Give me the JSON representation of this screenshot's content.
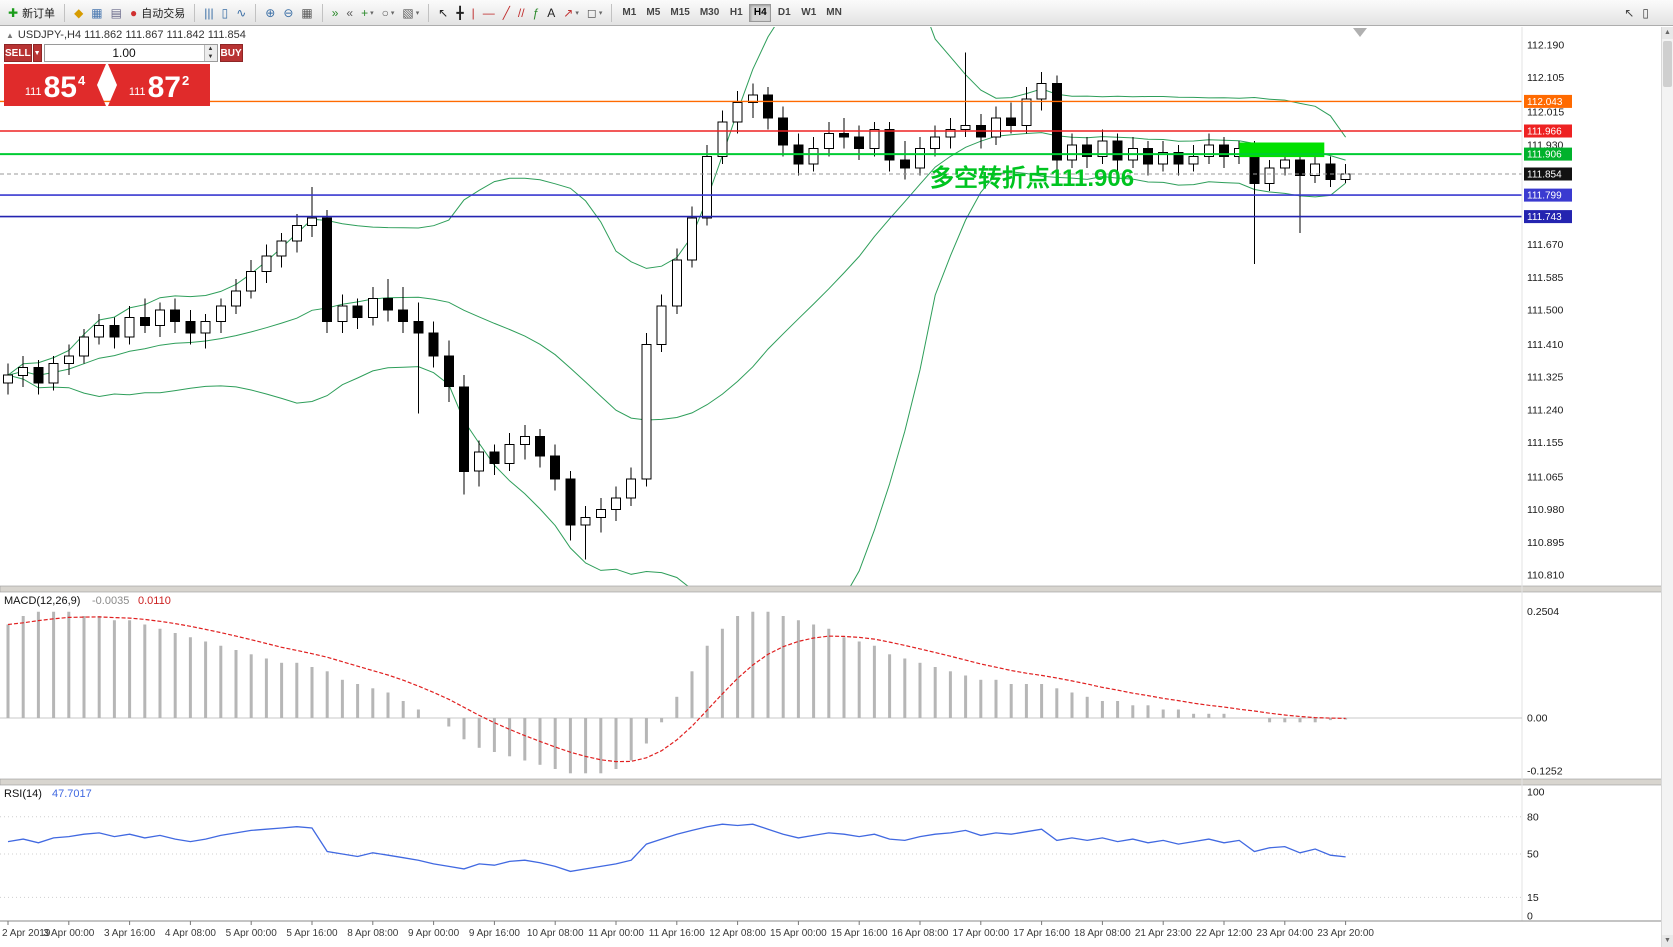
{
  "toolbar": {
    "groups": [
      {
        "items": [
          {
            "name": "new-order-button",
            "glyph": "✚",
            "glyph_color": "#1a9c1a",
            "label": "新订单"
          }
        ]
      },
      {
        "items": [
          {
            "name": "market-watch-icon",
            "glyph": "◆",
            "glyph_color": "#d69b00"
          },
          {
            "name": "data-window-icon",
            "glyph": "▦",
            "glyph_color": "#4a78b0"
          },
          {
            "name": "navigator-icon",
            "glyph": "▤",
            "glyph_color": "#6a6a8a"
          },
          {
            "name": "auto-trading-button",
            "glyph": "●",
            "glyph_color": "#d03030",
            "label": "自动交易"
          }
        ]
      },
      {
        "items": [
          {
            "name": "bar-chart-icon",
            "glyph": "|||",
            "glyph_color": "#3a6ea5"
          },
          {
            "name": "candlestick-chart-icon",
            "glyph": "▯",
            "glyph_color": "#3a6ea5"
          },
          {
            "name": "line-chart-icon",
            "glyph": "∿",
            "glyph_color": "#3a6ea5"
          }
        ]
      },
      {
        "items": [
          {
            "name": "zoom-in-icon",
            "glyph": "⊕",
            "glyph_color": "#3a6ea5"
          },
          {
            "name": "zoom-out-icon",
            "glyph": "⊖",
            "glyph_color": "#3a6ea5"
          },
          {
            "name": "tile-windows-icon",
            "glyph": "▦",
            "glyph_color": "#5a5a5a"
          }
        ]
      },
      {
        "items": [
          {
            "name": "auto-scroll-icon",
            "glyph": "»",
            "glyph_color": "#2c8a2c"
          },
          {
            "name": "chart-shift-icon",
            "glyph": "«",
            "glyph_color": "#5a5a5a"
          },
          {
            "name": "new-chart-button",
            "glyph": "+",
            "glyph_color": "#2c8a2c",
            "caret": true
          },
          {
            "name": "profiles-button",
            "glyph": "○",
            "glyph_color": "#5a5a5a",
            "caret": true
          },
          {
            "name": "templates-button",
            "glyph": "▧",
            "glyph_color": "#5a5a5a",
            "caret": true
          }
        ]
      },
      {
        "items": [
          {
            "name": "cursor-tool",
            "glyph": "↖",
            "glyph_color": "#222222"
          },
          {
            "name": "crosshair-tool",
            "glyph": "╋",
            "glyph_color": "#222222"
          },
          {
            "name": "vertical-line-tool",
            "glyph": "|",
            "glyph_color": "#c03030"
          },
          {
            "name": "horizontal-line-tool",
            "glyph": "—",
            "glyph_color": "#c03030"
          },
          {
            "name": "trendline-tool",
            "glyph": "╱",
            "glyph_color": "#c03030"
          },
          {
            "name": "channel-tool",
            "glyph": "//",
            "glyph_color": "#c03030"
          },
          {
            "name": "fibonacci-tool",
            "glyph": "ƒ",
            "glyph_color": "#2c8a2c"
          },
          {
            "name": "text-tool",
            "glyph": "A",
            "glyph_color": "#222222"
          },
          {
            "name": "arrow-tool",
            "glyph": "↗",
            "glyph_color": "#c03030",
            "caret": true
          },
          {
            "name": "shapes-tool",
            "glyph": "◻",
            "glyph_color": "#5a5a5a",
            "caret": true
          }
        ]
      }
    ],
    "timeframes": {
      "items": [
        "M1",
        "M5",
        "M15",
        "M30",
        "H1",
        "H4",
        "D1",
        "W1",
        "MN"
      ],
      "active": "H4"
    },
    "right_items": [
      {
        "name": "pointer-icon",
        "glyph": "↖",
        "glyph_color": "#444444"
      },
      {
        "name": "window-icon",
        "glyph": "▯",
        "glyph_color": "#444444"
      }
    ]
  },
  "chart_header": {
    "marker": "▲",
    "symbol": "USDJPY-,H4",
    "ohlc": "111.862 111.867 111.842 111.854"
  },
  "trade_panel": {
    "sell_label": "SELL",
    "buy_label": "BUY",
    "volume": "1.00",
    "sell_price": {
      "prefix": "111",
      "big": "85",
      "sup": "4"
    },
    "buy_price": {
      "prefix": "111",
      "big": "87",
      "sup": "2"
    }
  },
  "annotation": {
    "text": "多空转折点111.906",
    "color": "#00c420"
  },
  "price_lines": [
    {
      "label": "112.043",
      "price": 112.043,
      "color": "#ff6a00",
      "badge": "#ff6a00",
      "text_color": "#ffffff",
      "width": 1.4
    },
    {
      "label": "111.966",
      "price": 111.966,
      "color": "#ee2222",
      "badge": "#ee2222",
      "text_color": "#ffffff",
      "width": 1.4
    },
    {
      "label": "111.906",
      "price": 111.906,
      "color": "#00cc33",
      "badge": "#00b22c",
      "text_color": "#ffffff",
      "width": 2
    },
    {
      "label": "111.854",
      "price": 111.854,
      "color": "#9a9a9a",
      "badge": "#111111",
      "text_color": "#ffffff",
      "width": 1,
      "dash": "4 3"
    },
    {
      "label": "111.799",
      "price": 111.799,
      "color": "#3a3ad0",
      "badge": "#3a3ad0",
      "text_color": "#ffffff",
      "width": 1.6
    },
    {
      "label": "111.743",
      "price": 111.743,
      "color": "#2424b0",
      "badge": "#2424b0",
      "text_color": "#ffffff",
      "width": 1.6
    }
  ],
  "highlight_box": {
    "start_index": 81,
    "end_index": 86.6,
    "price_top": 111.936,
    "price_bottom": 111.898,
    "color": "#00e000"
  },
  "price_axis": {
    "labels": [
      "112.190",
      "112.105",
      "112.015",
      "111.930",
      "111.670",
      "111.585",
      "111.500",
      "111.410",
      "111.325",
      "111.240",
      "111.155",
      "111.065",
      "110.980",
      "110.895",
      "110.810"
    ]
  },
  "time_axis": {
    "labels": [
      "2 Apr 2019",
      "3 Apr 00:00",
      "3 Apr 16:00",
      "4 Apr 08:00",
      "5 Apr 00:00",
      "5 Apr 16:00",
      "8 Apr 08:00",
      "9 Apr 00:00",
      "9 Apr 16:00",
      "10 Apr 08:00",
      "11 Apr 00:00",
      "11 Apr 16:00",
      "12 Apr 08:00",
      "15 Apr 00:00",
      "15 Apr 16:00",
      "16 Apr 08:00",
      "17 Apr 00:00",
      "17 Apr 16:00",
      "18 Apr 08:00",
      "21 Apr 23:00",
      "22 Apr 12:00",
      "23 Apr 04:00",
      "23 Apr 20:00"
    ]
  },
  "macd_panel": {
    "name": "MACD(12,26,9)",
    "value_main": "-0.0035",
    "value_signal": "0.0110",
    "axis_labels": [
      "0.2504",
      "0.00",
      "-0.1252"
    ]
  },
  "rsi_panel": {
    "name": "RSI(14)",
    "value": "47.7017",
    "axis_labels": [
      "100",
      "80",
      "50",
      "15",
      "0"
    ],
    "levels": [
      80,
      50,
      15
    ]
  },
  "chart_data": {
    "type": "candlestick",
    "symbol": "USDJPY",
    "timeframe": "H4",
    "ylim_main": [
      110.79,
      112.24
    ],
    "candles": [
      [
        111.31,
        111.36,
        111.28,
        111.33
      ],
      [
        111.33,
        111.38,
        111.3,
        111.35
      ],
      [
        111.35,
        111.37,
        111.28,
        111.31
      ],
      [
        111.31,
        111.38,
        111.29,
        111.36
      ],
      [
        111.36,
        111.41,
        111.33,
        111.38
      ],
      [
        111.38,
        111.45,
        111.36,
        111.43
      ],
      [
        111.43,
        111.49,
        111.41,
        111.46
      ],
      [
        111.46,
        111.48,
        111.4,
        111.43
      ],
      [
        111.43,
        111.51,
        111.41,
        111.48
      ],
      [
        111.48,
        111.53,
        111.44,
        111.46
      ],
      [
        111.46,
        111.52,
        111.43,
        111.5
      ],
      [
        111.5,
        111.53,
        111.44,
        111.47
      ],
      [
        111.47,
        111.5,
        111.41,
        111.44
      ],
      [
        111.44,
        111.49,
        111.4,
        111.47
      ],
      [
        111.47,
        111.53,
        111.44,
        111.51
      ],
      [
        111.51,
        111.58,
        111.49,
        111.55
      ],
      [
        111.55,
        111.63,
        111.53,
        111.6
      ],
      [
        111.6,
        111.67,
        111.57,
        111.64
      ],
      [
        111.64,
        111.7,
        111.61,
        111.68
      ],
      [
        111.68,
        111.75,
        111.65,
        111.72
      ],
      [
        111.72,
        111.82,
        111.69,
        111.74
      ],
      [
        111.74,
        111.76,
        111.44,
        111.47
      ],
      [
        111.47,
        111.54,
        111.44,
        111.51
      ],
      [
        111.51,
        111.53,
        111.45,
        111.48
      ],
      [
        111.48,
        111.56,
        111.46,
        111.53
      ],
      [
        111.53,
        111.58,
        111.47,
        111.5
      ],
      [
        111.5,
        111.56,
        111.44,
        111.47
      ],
      [
        111.47,
        111.52,
        111.23,
        111.44
      ],
      [
        111.44,
        111.47,
        111.35,
        111.38
      ],
      [
        111.38,
        111.42,
        111.26,
        111.3
      ],
      [
        111.3,
        111.33,
        111.02,
        111.08
      ],
      [
        111.08,
        111.16,
        111.04,
        111.13
      ],
      [
        111.13,
        111.15,
        111.07,
        111.1
      ],
      [
        111.1,
        111.18,
        111.08,
        111.15
      ],
      [
        111.15,
        111.2,
        111.11,
        111.17
      ],
      [
        111.17,
        111.19,
        111.09,
        111.12
      ],
      [
        111.12,
        111.15,
        111.03,
        111.06
      ],
      [
        111.06,
        111.08,
        110.9,
        110.94
      ],
      [
        110.94,
        110.99,
        110.85,
        110.96
      ],
      [
        110.96,
        111.01,
        110.92,
        110.98
      ],
      [
        110.98,
        111.04,
        110.95,
        111.01
      ],
      [
        111.01,
        111.09,
        110.99,
        111.06
      ],
      [
        111.06,
        111.44,
        111.04,
        111.41
      ],
      [
        111.41,
        111.54,
        111.39,
        111.51
      ],
      [
        111.51,
        111.66,
        111.49,
        111.63
      ],
      [
        111.63,
        111.77,
        111.61,
        111.74
      ],
      [
        111.74,
        111.93,
        111.72,
        111.9
      ],
      [
        111.9,
        112.02,
        111.88,
        111.99
      ],
      [
        111.99,
        112.07,
        111.96,
        112.04
      ],
      [
        112.04,
        112.09,
        112.0,
        112.06
      ],
      [
        112.06,
        112.08,
        111.97,
        112.0
      ],
      [
        112.0,
        112.03,
        111.9,
        111.93
      ],
      [
        111.93,
        111.96,
        111.85,
        111.88
      ],
      [
        111.88,
        111.95,
        111.86,
        111.92
      ],
      [
        111.92,
        111.99,
        111.9,
        111.96
      ],
      [
        111.96,
        112.0,
        111.92,
        111.95
      ],
      [
        111.95,
        111.98,
        111.89,
        111.92
      ],
      [
        111.92,
        111.99,
        111.9,
        111.97
      ],
      [
        111.97,
        111.99,
        111.86,
        111.89
      ],
      [
        111.89,
        111.94,
        111.84,
        111.87
      ],
      [
        111.87,
        111.95,
        111.85,
        111.92
      ],
      [
        111.92,
        111.98,
        111.9,
        111.95
      ],
      [
        111.95,
        112.0,
        111.92,
        111.97
      ],
      [
        111.97,
        112.17,
        111.95,
        111.98
      ],
      [
        111.98,
        112.01,
        111.92,
        111.95
      ],
      [
        111.95,
        112.03,
        111.93,
        112.0
      ],
      [
        112.0,
        112.04,
        111.96,
        111.98
      ],
      [
        111.98,
        112.08,
        111.96,
        112.05
      ],
      [
        112.05,
        112.12,
        112.02,
        112.09
      ],
      [
        112.09,
        112.11,
        111.86,
        111.89
      ],
      [
        111.89,
        111.96,
        111.87,
        111.93
      ],
      [
        111.93,
        111.95,
        111.87,
        111.9
      ],
      [
        111.9,
        111.97,
        111.88,
        111.94
      ],
      [
        111.94,
        111.96,
        111.86,
        111.89
      ],
      [
        111.89,
        111.95,
        111.87,
        111.92
      ],
      [
        111.92,
        111.94,
        111.85,
        111.88
      ],
      [
        111.88,
        111.94,
        111.86,
        111.91
      ],
      [
        111.91,
        111.93,
        111.85,
        111.88
      ],
      [
        111.88,
        111.93,
        111.86,
        111.9
      ],
      [
        111.9,
        111.96,
        111.88,
        111.93
      ],
      [
        111.93,
        111.95,
        111.87,
        111.9
      ],
      [
        111.9,
        111.94,
        111.88,
        111.92
      ],
      [
        111.92,
        111.94,
        111.62,
        111.83
      ],
      [
        111.83,
        111.89,
        111.81,
        111.87
      ],
      [
        111.87,
        111.92,
        111.85,
        111.89
      ],
      [
        111.89,
        111.91,
        111.7,
        111.85
      ],
      [
        111.85,
        111.9,
        111.83,
        111.88
      ],
      [
        111.88,
        111.9,
        111.82,
        111.84
      ],
      [
        111.84,
        111.88,
        111.83,
        111.854
      ]
    ],
    "indicators": {
      "bollinger": {
        "period": 20,
        "deviation": 2,
        "color": "#2e9e5a"
      },
      "macd": {
        "fast": 12,
        "slow": 26,
        "signal": 9,
        "histogram_color": "#b6b6b6",
        "signal_color": "#e02020",
        "ylim": [
          -0.15,
          0.3
        ],
        "histogram": [
          0.22,
          0.24,
          0.25,
          0.25,
          0.25,
          0.24,
          0.24,
          0.23,
          0.23,
          0.22,
          0.21,
          0.2,
          0.19,
          0.18,
          0.17,
          0.16,
          0.15,
          0.14,
          0.13,
          0.13,
          0.12,
          0.11,
          0.09,
          0.08,
          0.07,
          0.06,
          0.04,
          0.02,
          0.0,
          -0.02,
          -0.05,
          -0.07,
          -0.08,
          -0.09,
          -0.1,
          -0.11,
          -0.12,
          -0.13,
          -0.13,
          -0.13,
          -0.12,
          -0.1,
          -0.06,
          -0.01,
          0.05,
          0.11,
          0.17,
          0.21,
          0.24,
          0.25,
          0.25,
          0.24,
          0.23,
          0.22,
          0.21,
          0.19,
          0.18,
          0.17,
          0.15,
          0.14,
          0.13,
          0.12,
          0.11,
          0.1,
          0.09,
          0.09,
          0.08,
          0.08,
          0.08,
          0.07,
          0.06,
          0.05,
          0.04,
          0.04,
          0.03,
          0.03,
          0.02,
          0.02,
          0.01,
          0.01,
          0.01,
          0.0,
          0.0,
          -0.01,
          -0.01,
          -0.01,
          -0.01,
          -0.005,
          -0.0035
        ]
      },
      "rsi": {
        "period": 14,
        "color": "#4169e1",
        "ylim": [
          0,
          100
        ],
        "values": [
          60,
          62,
          59,
          63,
          64,
          66,
          67,
          64,
          66,
          63,
          65,
          62,
          60,
          62,
          65,
          67,
          69,
          70,
          71,
          72,
          71,
          52,
          50,
          48,
          51,
          49,
          47,
          45,
          42,
          40,
          38,
          42,
          41,
          44,
          45,
          43,
          40,
          36,
          38,
          40,
          42,
          45,
          58,
          62,
          66,
          69,
          72,
          74,
          73,
          74,
          70,
          66,
          63,
          65,
          67,
          66,
          64,
          66,
          62,
          61,
          64,
          66,
          67,
          69,
          65,
          67,
          66,
          68,
          70,
          61,
          63,
          61,
          63,
          60,
          62,
          59,
          61,
          58,
          60,
          62,
          59,
          61,
          52,
          55,
          56,
          51,
          54,
          49,
          47.7
        ]
      }
    }
  }
}
